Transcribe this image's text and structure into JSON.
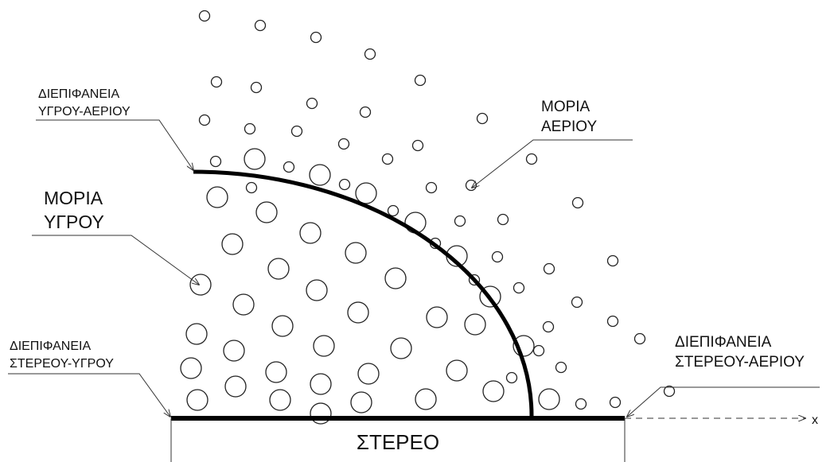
{
  "labels": [
    {
      "lines": [
        "ΔΙΕΠΙΦΑΝΕΙΑ",
        "ΥΓΡΟΥ-ΑΕΡΙΟΥ"
      ]
    },
    {
      "lines": [
        "ΜΟΡΙΑ",
        "ΑΕΡΙΟΥ"
      ]
    },
    {
      "lines": [
        "ΜΟΡΙΑ",
        "ΥΓΡΟΥ"
      ]
    },
    {
      "lines": [
        "ΔΙΕΠΙΦΑΝΕΙΑ",
        "ΣΤΕΡΕΟΥ-ΥΓΡΟΥ"
      ]
    },
    {
      "lines": [
        "ΔΙΕΠΙΦΑΝΕΙΑ",
        "ΣΤΕΡΕΟΥ-ΑΕΡΙΟΥ"
      ]
    }
  ],
  "solid": "ΣΤΕΡΕΟ",
  "axis": "x"
}
